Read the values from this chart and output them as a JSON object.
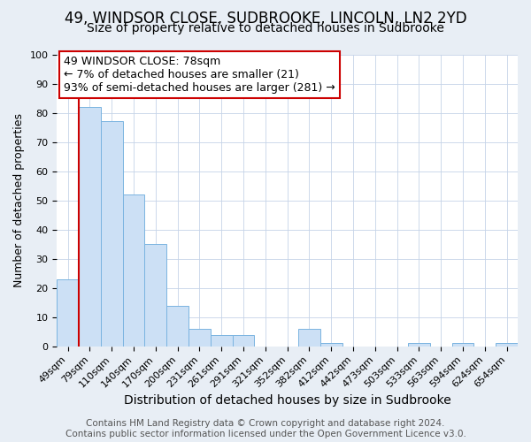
{
  "title": "49, WINDSOR CLOSE, SUDBROOKE, LINCOLN, LN2 2YD",
  "subtitle": "Size of property relative to detached houses in Sudbrooke",
  "xlabel": "Distribution of detached houses by size in Sudbrooke",
  "ylabel": "Number of detached properties",
  "bar_labels": [
    "49sqm",
    "79sqm",
    "110sqm",
    "140sqm",
    "170sqm",
    "200sqm",
    "231sqm",
    "261sqm",
    "291sqm",
    "321sqm",
    "352sqm",
    "382sqm",
    "412sqm",
    "442sqm",
    "473sqm",
    "503sqm",
    "533sqm",
    "563sqm",
    "594sqm",
    "624sqm",
    "654sqm"
  ],
  "bar_values": [
    23,
    82,
    77,
    52,
    35,
    14,
    6,
    4,
    4,
    0,
    0,
    6,
    1,
    0,
    0,
    0,
    1,
    0,
    1,
    0,
    1
  ],
  "bar_color": "#cce0f5",
  "bar_edge_color": "#7ab4e0",
  "annotation_box_text": "49 WINDSOR CLOSE: 78sqm\n← 7% of detached houses are smaller (21)\n93% of semi-detached houses are larger (281) →",
  "annotation_box_color": "#ffffff",
  "annotation_box_edge_color": "#cc0000",
  "vline_color": "#cc0000",
  "ylim": [
    0,
    100
  ],
  "background_color": "#e8eef5",
  "plot_background": "#ffffff",
  "footer_line1": "Contains HM Land Registry data © Crown copyright and database right 2024.",
  "footer_line2": "Contains public sector information licensed under the Open Government Licence v3.0.",
  "title_fontsize": 12,
  "subtitle_fontsize": 10,
  "xlabel_fontsize": 10,
  "ylabel_fontsize": 9,
  "tick_fontsize": 8,
  "annotation_fontsize": 9,
  "footer_fontsize": 7.5
}
